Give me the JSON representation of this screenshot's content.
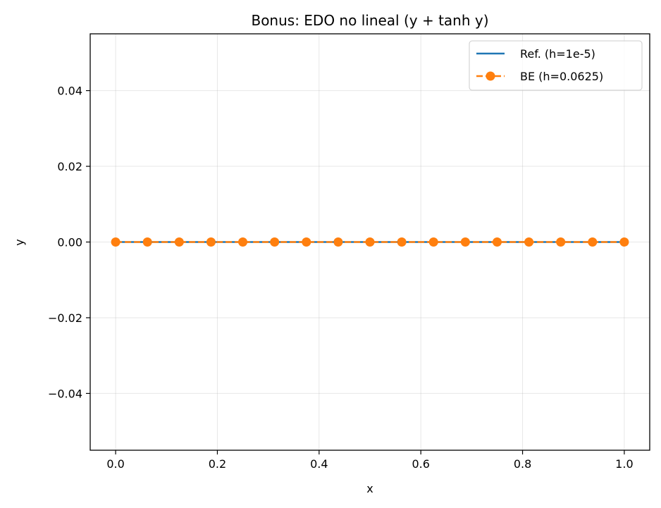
{
  "chart_data": {
    "type": "line",
    "title": "Bonus: EDO no lineal (y + tanh y)",
    "xlabel": "x",
    "ylabel": "y",
    "xlim": [
      -0.05,
      1.05
    ],
    "ylim": [
      -0.055,
      0.055
    ],
    "x_ticks": [
      0.0,
      0.2,
      0.4,
      0.6,
      0.8,
      1.0
    ],
    "x_tick_labels": [
      "0.0",
      "0.2",
      "0.4",
      "0.6",
      "0.8",
      "1.0"
    ],
    "y_ticks": [
      0.04,
      0.02,
      0.0,
      -0.02,
      -0.04
    ],
    "y_tick_labels": [
      "0.04",
      "0.02",
      "0.00",
      "−0.02",
      "−0.04"
    ],
    "grid": true,
    "legend_position": "top-right",
    "series": [
      {
        "name": "Ref. (h=1e-5)",
        "style": "solid",
        "marker": "none",
        "color": "#1f77b4",
        "x": [
          0.0,
          1.0
        ],
        "y": [
          0.0,
          0.0
        ]
      },
      {
        "name": "BE (h=0.0625)",
        "style": "dashed",
        "marker": "circle",
        "color": "#ff7f0e",
        "x": [
          0.0,
          0.0625,
          0.125,
          0.1875,
          0.25,
          0.3125,
          0.375,
          0.4375,
          0.5,
          0.5625,
          0.625,
          0.6875,
          0.75,
          0.8125,
          0.875,
          0.9375,
          1.0
        ],
        "y": [
          0,
          0,
          0,
          0,
          0,
          0,
          0,
          0,
          0,
          0,
          0,
          0,
          0,
          0,
          0,
          0,
          0
        ]
      }
    ]
  }
}
